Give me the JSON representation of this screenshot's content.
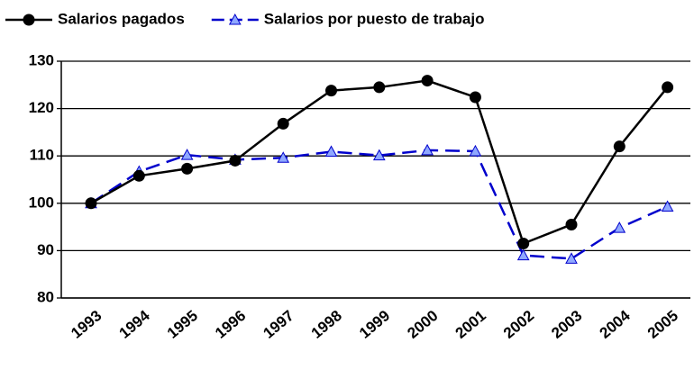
{
  "chart_data": {
    "type": "line",
    "categories": [
      "1993",
      "1994",
      "1995",
      "1996",
      "1997",
      "1998",
      "1999",
      "2000",
      "2001",
      "2002",
      "2003",
      "2004",
      "2005"
    ],
    "series": [
      {
        "name": "Salarios pagados",
        "color": "#000000",
        "dash": false,
        "marker": "circle",
        "values": [
          100,
          105.8,
          107.3,
          109,
          116.8,
          123.8,
          124.5,
          125.9,
          122.4,
          91.5,
          95.5,
          112,
          124.5
        ]
      },
      {
        "name": "Salarios por puesto de trabajo",
        "color": "#0000cc",
        "dash": true,
        "marker": "triangle",
        "values": [
          100,
          106.7,
          110.2,
          109.2,
          109.6,
          110.9,
          110.1,
          111.2,
          111,
          89,
          88.3,
          94.8,
          99.3
        ]
      }
    ],
    "ylim": [
      80,
      130
    ],
    "yticks": [
      80,
      90,
      100,
      110,
      120,
      130
    ],
    "grid": true,
    "legend": "top"
  }
}
